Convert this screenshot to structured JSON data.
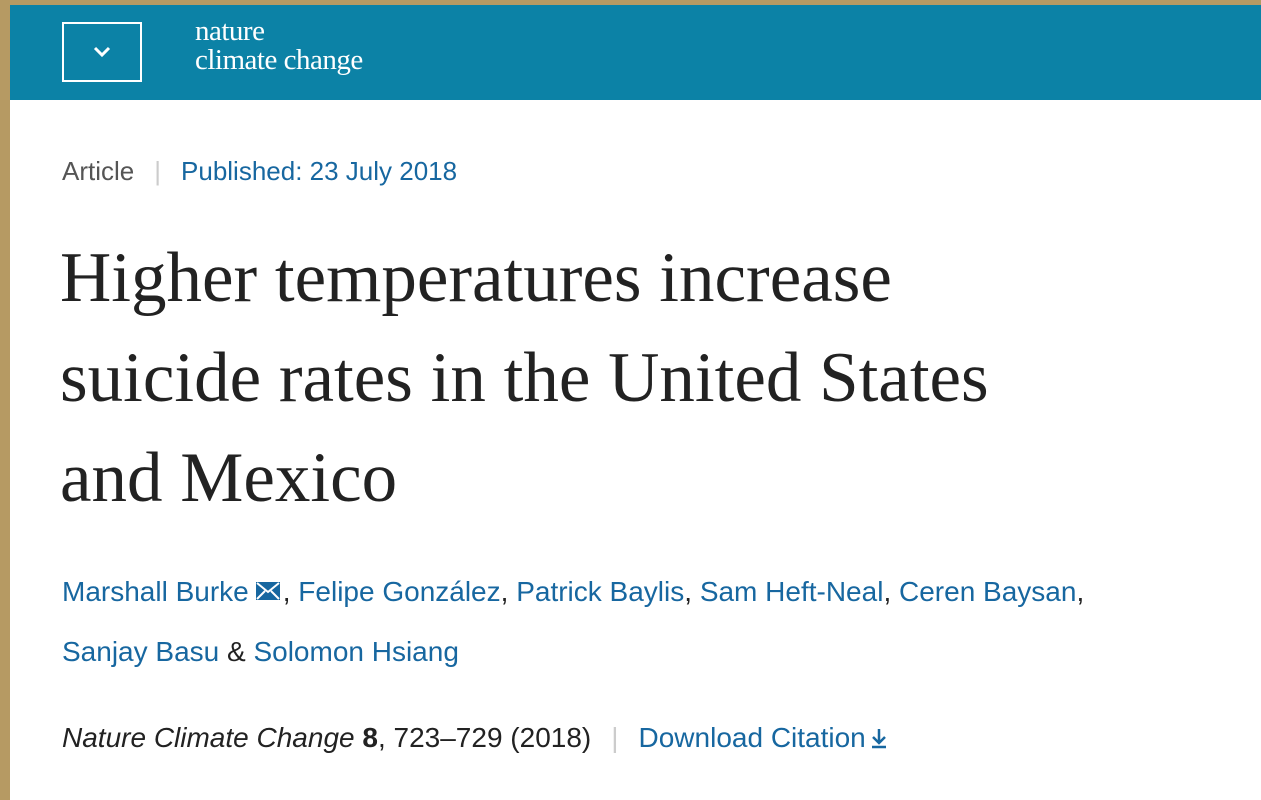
{
  "header": {
    "logo_line1": "nature",
    "logo_line2": "climate change"
  },
  "article": {
    "type": "Article",
    "published": "Published: 23 July 2018",
    "title_lines": [
      "Higher temperatures increase",
      "suicide rates in the United States",
      "and Mexico"
    ],
    "authors": [
      "Marshall Burke",
      "Felipe González",
      "Patrick Baylis",
      "Sam Heft-Neal",
      "Ceren Baysan",
      "Sanjay Basu",
      "Solomon Hsiang"
    ],
    "author_separators": [
      ", ",
      ", ",
      ", ",
      ", ",
      ",",
      " & "
    ],
    "citation": {
      "journal": "Nature Climate Change",
      "volume": "8",
      "rest": ", 723–729 (2018)",
      "download": "Download Citation"
    }
  }
}
